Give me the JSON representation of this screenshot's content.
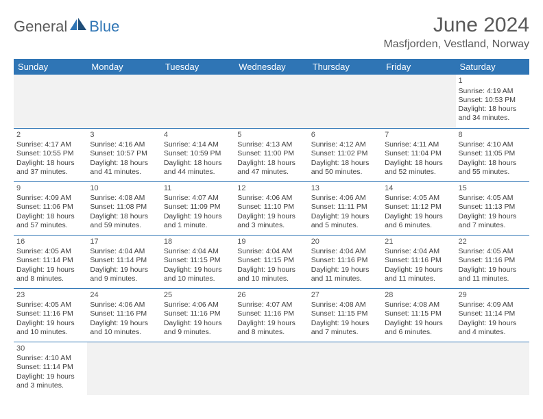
{
  "logo": {
    "main": "General",
    "sub": "Blue"
  },
  "header": {
    "title": "June 2024",
    "location": "Masfjorden, Vestland, Norway"
  },
  "colors": {
    "header_bg": "#2f75b5",
    "header_text": "#ffffff",
    "cell_border": "#2f75b5",
    "text": "#404040",
    "title_text": "#595959",
    "empty_bg": "#f2f2f2"
  },
  "weekdays": [
    "Sunday",
    "Monday",
    "Tuesday",
    "Wednesday",
    "Thursday",
    "Friday",
    "Saturday"
  ],
  "weeks": [
    [
      null,
      null,
      null,
      null,
      null,
      null,
      {
        "n": "1",
        "sr": "Sunrise: 4:19 AM",
        "ss": "Sunset: 10:53 PM",
        "dl": "Daylight: 18 hours and 34 minutes."
      }
    ],
    [
      {
        "n": "2",
        "sr": "Sunrise: 4:17 AM",
        "ss": "Sunset: 10:55 PM",
        "dl": "Daylight: 18 hours and 37 minutes."
      },
      {
        "n": "3",
        "sr": "Sunrise: 4:16 AM",
        "ss": "Sunset: 10:57 PM",
        "dl": "Daylight: 18 hours and 41 minutes."
      },
      {
        "n": "4",
        "sr": "Sunrise: 4:14 AM",
        "ss": "Sunset: 10:59 PM",
        "dl": "Daylight: 18 hours and 44 minutes."
      },
      {
        "n": "5",
        "sr": "Sunrise: 4:13 AM",
        "ss": "Sunset: 11:00 PM",
        "dl": "Daylight: 18 hours and 47 minutes."
      },
      {
        "n": "6",
        "sr": "Sunrise: 4:12 AM",
        "ss": "Sunset: 11:02 PM",
        "dl": "Daylight: 18 hours and 50 minutes."
      },
      {
        "n": "7",
        "sr": "Sunrise: 4:11 AM",
        "ss": "Sunset: 11:04 PM",
        "dl": "Daylight: 18 hours and 52 minutes."
      },
      {
        "n": "8",
        "sr": "Sunrise: 4:10 AM",
        "ss": "Sunset: 11:05 PM",
        "dl": "Daylight: 18 hours and 55 minutes."
      }
    ],
    [
      {
        "n": "9",
        "sr": "Sunrise: 4:09 AM",
        "ss": "Sunset: 11:06 PM",
        "dl": "Daylight: 18 hours and 57 minutes."
      },
      {
        "n": "10",
        "sr": "Sunrise: 4:08 AM",
        "ss": "Sunset: 11:08 PM",
        "dl": "Daylight: 18 hours and 59 minutes."
      },
      {
        "n": "11",
        "sr": "Sunrise: 4:07 AM",
        "ss": "Sunset: 11:09 PM",
        "dl": "Daylight: 19 hours and 1 minute."
      },
      {
        "n": "12",
        "sr": "Sunrise: 4:06 AM",
        "ss": "Sunset: 11:10 PM",
        "dl": "Daylight: 19 hours and 3 minutes."
      },
      {
        "n": "13",
        "sr": "Sunrise: 4:06 AM",
        "ss": "Sunset: 11:11 PM",
        "dl": "Daylight: 19 hours and 5 minutes."
      },
      {
        "n": "14",
        "sr": "Sunrise: 4:05 AM",
        "ss": "Sunset: 11:12 PM",
        "dl": "Daylight: 19 hours and 6 minutes."
      },
      {
        "n": "15",
        "sr": "Sunrise: 4:05 AM",
        "ss": "Sunset: 11:13 PM",
        "dl": "Daylight: 19 hours and 7 minutes."
      }
    ],
    [
      {
        "n": "16",
        "sr": "Sunrise: 4:05 AM",
        "ss": "Sunset: 11:14 PM",
        "dl": "Daylight: 19 hours and 8 minutes."
      },
      {
        "n": "17",
        "sr": "Sunrise: 4:04 AM",
        "ss": "Sunset: 11:14 PM",
        "dl": "Daylight: 19 hours and 9 minutes."
      },
      {
        "n": "18",
        "sr": "Sunrise: 4:04 AM",
        "ss": "Sunset: 11:15 PM",
        "dl": "Daylight: 19 hours and 10 minutes."
      },
      {
        "n": "19",
        "sr": "Sunrise: 4:04 AM",
        "ss": "Sunset: 11:15 PM",
        "dl": "Daylight: 19 hours and 10 minutes."
      },
      {
        "n": "20",
        "sr": "Sunrise: 4:04 AM",
        "ss": "Sunset: 11:16 PM",
        "dl": "Daylight: 19 hours and 11 minutes."
      },
      {
        "n": "21",
        "sr": "Sunrise: 4:04 AM",
        "ss": "Sunset: 11:16 PM",
        "dl": "Daylight: 19 hours and 11 minutes."
      },
      {
        "n": "22",
        "sr": "Sunrise: 4:05 AM",
        "ss": "Sunset: 11:16 PM",
        "dl": "Daylight: 19 hours and 11 minutes."
      }
    ],
    [
      {
        "n": "23",
        "sr": "Sunrise: 4:05 AM",
        "ss": "Sunset: 11:16 PM",
        "dl": "Daylight: 19 hours and 10 minutes."
      },
      {
        "n": "24",
        "sr": "Sunrise: 4:06 AM",
        "ss": "Sunset: 11:16 PM",
        "dl": "Daylight: 19 hours and 10 minutes."
      },
      {
        "n": "25",
        "sr": "Sunrise: 4:06 AM",
        "ss": "Sunset: 11:16 PM",
        "dl": "Daylight: 19 hours and 9 minutes."
      },
      {
        "n": "26",
        "sr": "Sunrise: 4:07 AM",
        "ss": "Sunset: 11:16 PM",
        "dl": "Daylight: 19 hours and 8 minutes."
      },
      {
        "n": "27",
        "sr": "Sunrise: 4:08 AM",
        "ss": "Sunset: 11:15 PM",
        "dl": "Daylight: 19 hours and 7 minutes."
      },
      {
        "n": "28",
        "sr": "Sunrise: 4:08 AM",
        "ss": "Sunset: 11:15 PM",
        "dl": "Daylight: 19 hours and 6 minutes."
      },
      {
        "n": "29",
        "sr": "Sunrise: 4:09 AM",
        "ss": "Sunset: 11:14 PM",
        "dl": "Daylight: 19 hours and 4 minutes."
      }
    ],
    [
      {
        "n": "30",
        "sr": "Sunrise: 4:10 AM",
        "ss": "Sunset: 11:14 PM",
        "dl": "Daylight: 19 hours and 3 minutes."
      },
      null,
      null,
      null,
      null,
      null,
      null
    ]
  ]
}
